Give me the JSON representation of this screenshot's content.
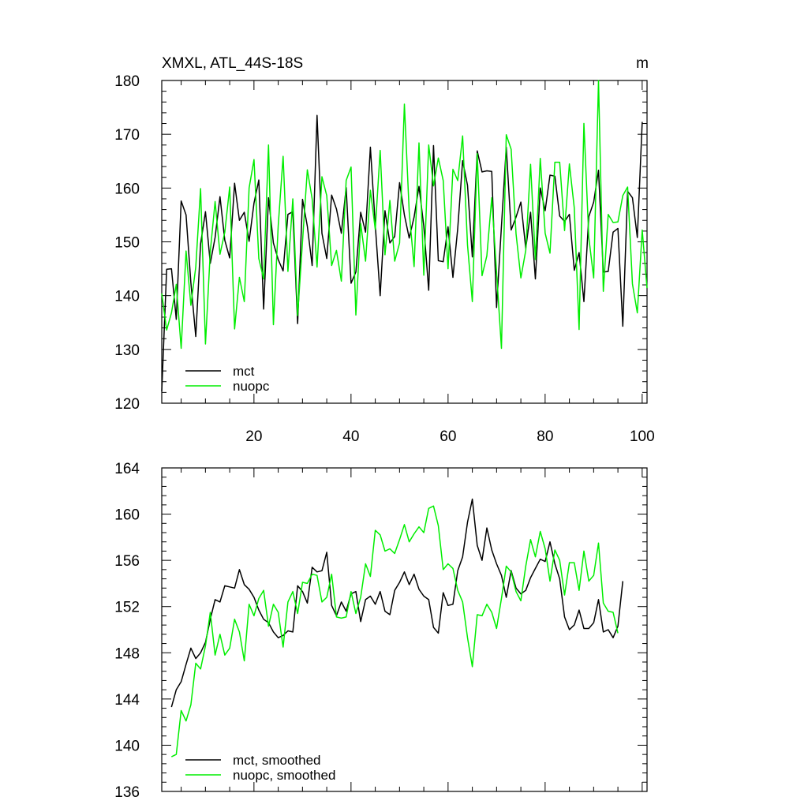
{
  "chart_data": [
    {
      "type": "line",
      "title": "XMXL, ATL_44S-18S",
      "units": "m",
      "xlim": [
        1,
        101
      ],
      "ylim": [
        120,
        180
      ],
      "x_ticks": [
        20,
        40,
        60,
        80,
        100
      ],
      "y_ticks": [
        120,
        130,
        140,
        150,
        160,
        170,
        180
      ],
      "legend": "bottom-left",
      "series": [
        {
          "name": "mct",
          "color": "#000000",
          "x_start": 1,
          "values": [
            122.2,
            144.9,
            145.0,
            135.6,
            157.6,
            155.0,
            142.4,
            132.4,
            149.6,
            155.6,
            146.0,
            150.8,
            158.4,
            150.3,
            147.0,
            160.9,
            154.0,
            155.5,
            150.1,
            157.2,
            161.5,
            137.5,
            158.2,
            149.8,
            146.7,
            144.6,
            155.1,
            155.6,
            134.8,
            157.9,
            152.9,
            145.6,
            173.5,
            151.6,
            146.9,
            158.7,
            156.1,
            151.6,
            160.1,
            142.3,
            144.4,
            155.5,
            151.8,
            167.6,
            153.1,
            140.0,
            155.8,
            149.8,
            151.0,
            161.0,
            155.0,
            150.7,
            154.6,
            160.3,
            152.9,
            141.0,
            167.9,
            146.5,
            146.3,
            152.8,
            143.4,
            152.5,
            165.1,
            160.5,
            147.2,
            166.9,
            163.0,
            163.2,
            163.1,
            137.8,
            152.9,
            167.6,
            152.2,
            154.6,
            157.4,
            148.8,
            155.5,
            143.1,
            160.0,
            155.8,
            162.4,
            162.2,
            154.8,
            153.8,
            155.1,
            144.7,
            148.0,
            138.9,
            154.7,
            157.4,
            163.3,
            144.4,
            144.5,
            151.8,
            152.5,
            134.3,
            159.4,
            158.2,
            150.8,
            172.3
          ]
        },
        {
          "name": "nuopc",
          "color": "#00ee00",
          "x_start": 1,
          "values": [
            140.4,
            133.6,
            136.8,
            142.1,
            130.2,
            148.3,
            138.2,
            145.3,
            159.9,
            131.0,
            148.2,
            157.5,
            147.7,
            151.8,
            160.2,
            133.8,
            143.4,
            138.9,
            160.0,
            165.3,
            146.9,
            143.1,
            168.0,
            134.6,
            153.0,
            165.9,
            144.5,
            158.0,
            136.3,
            150.1,
            163.4,
            158.0,
            145.3,
            162.1,
            158.6,
            145.6,
            148.4,
            142.7,
            161.4,
            163.9,
            136.4,
            153.4,
            146.4,
            159.6,
            152.3,
            167.0,
            147.6,
            157.7,
            146.4,
            149.8,
            175.6,
            155.6,
            145.4,
            168.4,
            143.8,
            168.0,
            160.4,
            165.6,
            161.4,
            145.0,
            163.5,
            161.4,
            169.7,
            149.4,
            138.9,
            166.4,
            143.7,
            147.4,
            158.2,
            144.4,
            130.2,
            169.9,
            167.2,
            151.5,
            143.3,
            148.4,
            164.4,
            146.7,
            165.5,
            151.6,
            147.9,
            164.8,
            164.8,
            152.1,
            164.5,
            156.3,
            133.7,
            172.0,
            150.8,
            143.3,
            180.0,
            140.8,
            155.1,
            153.6,
            153.7,
            158.6,
            160.2,
            142.2,
            136.8,
            152.2,
            141.4
          ]
        }
      ]
    },
    {
      "type": "line",
      "xlim": [
        1,
        101
      ],
      "ylim": [
        136,
        164
      ],
      "y_ticks": [
        136,
        140,
        144,
        148,
        152,
        156,
        160,
        164
      ],
      "legend": "bottom-left",
      "series": [
        {
          "name": "mct, smoothed",
          "color": "#000000",
          "x_start": 3,
          "values": [
            143.3,
            144.8,
            145.5,
            147.0,
            148.4,
            147.5,
            148.0,
            148.9,
            150.9,
            152.6,
            152.4,
            153.8,
            153.7,
            153.6,
            155.2,
            153.9,
            153.5,
            152.8,
            151.7,
            150.9,
            150.6,
            149.8,
            149.3,
            149.5,
            149.9,
            149.8,
            153.8,
            153.3,
            152.3,
            155.4,
            155.0,
            155.1,
            156.7,
            152.1,
            151.2,
            152.4,
            151.6,
            153.1,
            153.3,
            150.7,
            152.6,
            152.9,
            152.2,
            153.3,
            151.6,
            151.3,
            153.4,
            154.1,
            155.0,
            153.9,
            154.8,
            153.5,
            152.9,
            152.6,
            150.2,
            149.7,
            153.2,
            152.1,
            152.2,
            155.1,
            156.3,
            159.3,
            161.3,
            157.3,
            156.0,
            158.8,
            156.9,
            155.7,
            154.7,
            152.8,
            155.1,
            153.6,
            153.1,
            153.4,
            154.5,
            155.3,
            156.1,
            155.9,
            157.6,
            155.7,
            154.4,
            151.1,
            150.0,
            150.4,
            151.7,
            150.1,
            150.1,
            150.6,
            152.6,
            149.8,
            150.0,
            149.3,
            150.3,
            154.2
          ]
        },
        {
          "name": "nuopc, smoothed",
          "color": "#00ee00",
          "x_start": 3,
          "values": [
            139.0,
            139.2,
            143.0,
            142.1,
            143.5,
            147.1,
            146.6,
            148.6,
            151.5,
            147.8,
            149.6,
            147.8,
            148.4,
            150.9,
            149.8,
            147.3,
            152.2,
            151.2,
            152.7,
            153.4,
            150.3,
            152.2,
            151.5,
            148.5,
            152.4,
            153.3,
            151.4,
            154.1,
            154.0,
            154.8,
            154.7,
            152.4,
            152.8,
            154.8,
            151.1,
            151.0,
            151.1,
            153.3,
            151.4,
            152.8,
            155.7,
            154.6,
            158.6,
            158.2,
            156.8,
            157.0,
            156.6,
            157.8,
            159.1,
            157.6,
            158.3,
            158.9,
            158.4,
            160.5,
            160.7,
            159.0,
            155.2,
            155.7,
            155.3,
            153.4,
            152.4,
            149.3,
            146.8,
            151.3,
            151.2,
            152.2,
            151.5,
            150.1,
            152.7,
            155.5,
            155.0,
            153.3,
            152.5,
            155.5,
            157.8,
            156.3,
            158.5,
            157.0,
            154.2,
            156.9,
            156.0,
            153.0,
            155.8,
            155.8,
            153.4,
            156.8,
            154.2,
            154.7,
            157.5,
            152.3,
            151.6,
            151.5,
            149.7
          ]
        }
      ]
    }
  ]
}
